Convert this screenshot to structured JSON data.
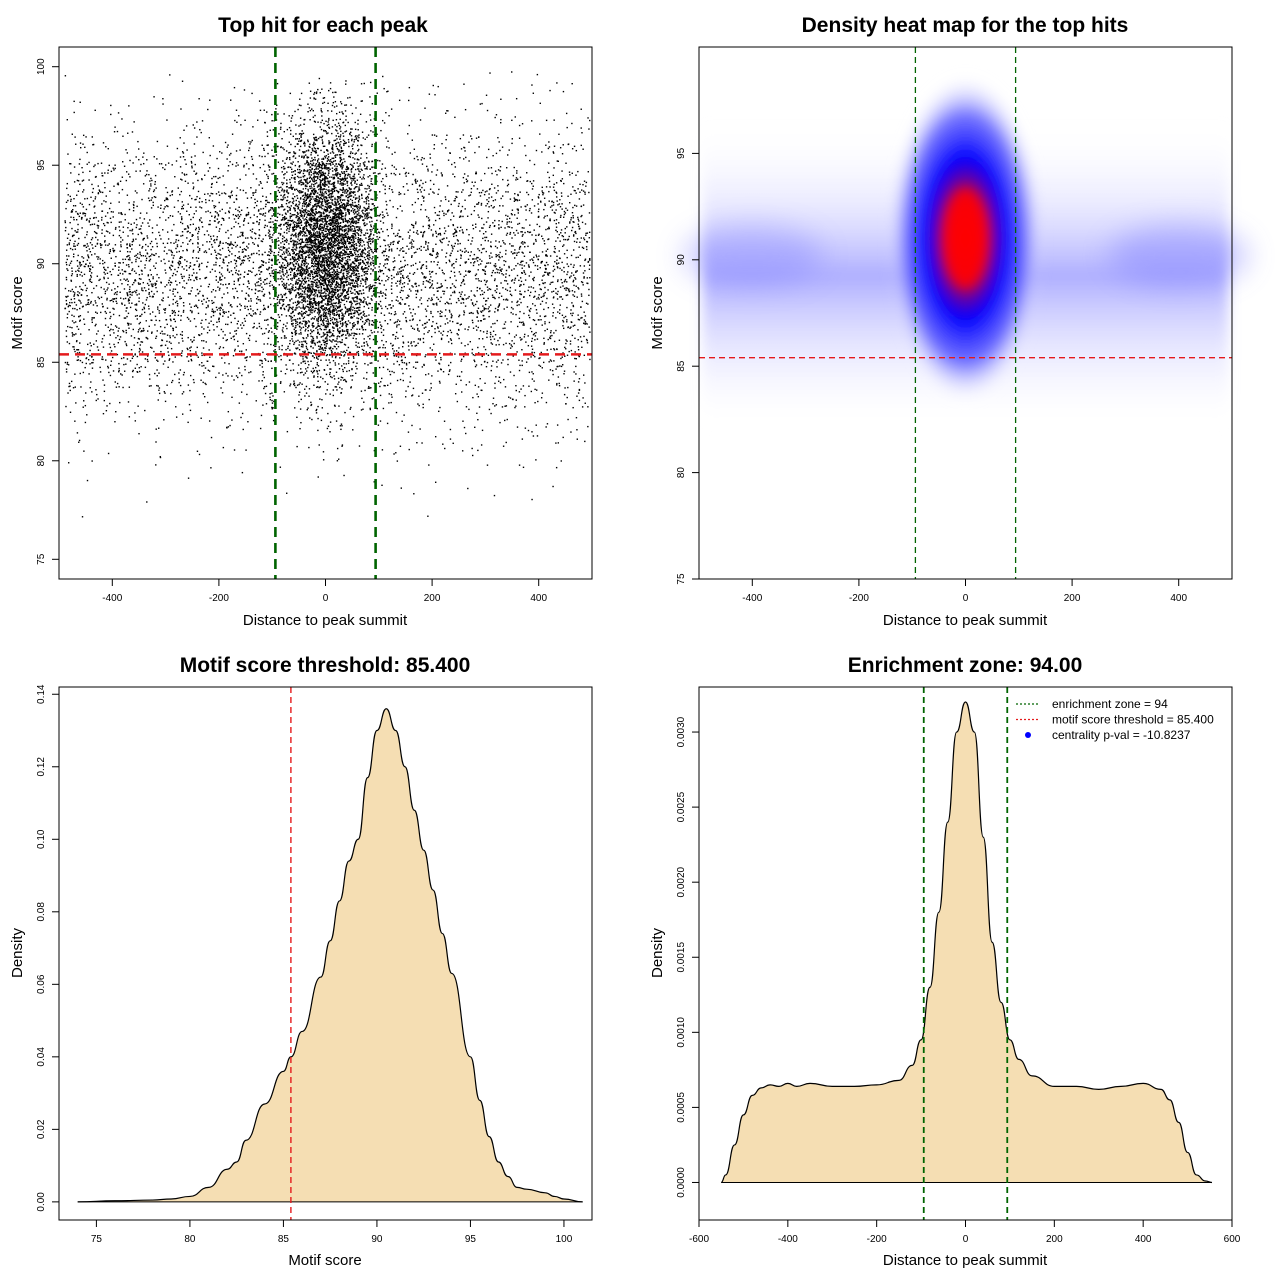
{
  "chart_data": [
    {
      "type": "scatter",
      "title": "Top hit for each peak",
      "xlabel": "Distance to peak summit",
      "ylabel": "Motif score",
      "xlim": [
        -500,
        500
      ],
      "ylim": [
        74,
        101
      ],
      "xticks": [
        -400,
        -200,
        0,
        200,
        400
      ],
      "yticks": [
        75,
        80,
        85,
        90,
        95,
        100
      ],
      "xtick_labels": [
        "-400",
        "-200",
        "0",
        "200",
        "400"
      ],
      "ytick_labels": [
        "75",
        "80",
        "85",
        "90",
        "95",
        "100"
      ],
      "background_points": {
        "x_range": [
          -490,
          495
        ],
        "y_mean": 89.5,
        "y_sd": 3.7
      },
      "central_points": {
        "x_mean": 0,
        "x_sd": 45,
        "y_mean": 91,
        "y_sd": 3
      },
      "reference_lines": {
        "vertical": [
          -94,
          94
        ],
        "horizontal": [
          85.4
        ],
        "vertical_color": "#006400",
        "horizontal_color": "#e41a1c"
      }
    },
    {
      "type": "heatmap",
      "title": "Density heat map for the top hits",
      "xlabel": "Distance to peak summit",
      "ylabel": "Motif score",
      "xlim": [
        -500,
        500
      ],
      "ylim": [
        75,
        100
      ],
      "xticks": [
        -400,
        -200,
        0,
        200,
        400
      ],
      "yticks": [
        75,
        80,
        85,
        90,
        95
      ],
      "xtick_labels": [
        "-400",
        "-200",
        "0",
        "200",
        "400"
      ],
      "ytick_labels": [
        "75",
        "80",
        "85",
        "90",
        "95"
      ],
      "hotspot": {
        "x": 0,
        "y": 91
      },
      "colors": {
        "low": "#ffffff",
        "mid": "#0000ff",
        "high": "#ff0000"
      },
      "reference_lines": {
        "vertical": [
          -94,
          94
        ],
        "horizontal": [
          85.4
        ],
        "vertical_color": "#006400",
        "horizontal_color": "#e41a1c"
      }
    },
    {
      "type": "area",
      "title": "Motif score threshold: 85.400",
      "xlabel": "Motif score",
      "ylabel": "Density",
      "xlim": [
        73,
        101.5
      ],
      "ylim": [
        -0.005,
        0.142
      ],
      "xticks": [
        75,
        80,
        85,
        90,
        95,
        100
      ],
      "yticks": [
        0,
        0.02,
        0.04,
        0.06,
        0.08,
        0.1,
        0.12,
        0.14
      ],
      "xtick_labels": [
        "75",
        "80",
        "85",
        "90",
        "95",
        "100"
      ],
      "ytick_labels": [
        "0.00",
        "0.02",
        "0.04",
        "0.06",
        "0.08",
        "0.10",
        "0.12",
        "0.14"
      ],
      "x": [
        74,
        76,
        78,
        79,
        80,
        81,
        82,
        82.5,
        83,
        84,
        85,
        85.4,
        86,
        87,
        87.5,
        88,
        88.5,
        89,
        89.5,
        90,
        90.5,
        91,
        91.5,
        92,
        92.5,
        93,
        93.5,
        94,
        95,
        95.5,
        96,
        96.5,
        97,
        97.5,
        98,
        99,
        99.5,
        100,
        101
      ],
      "y": [
        0,
        0.0003,
        0.0005,
        0.0008,
        0.0015,
        0.004,
        0.009,
        0.011,
        0.017,
        0.027,
        0.036,
        0.04,
        0.047,
        0.062,
        0.072,
        0.083,
        0.094,
        0.1,
        0.117,
        0.13,
        0.136,
        0.13,
        0.12,
        0.108,
        0.097,
        0.086,
        0.074,
        0.063,
        0.04,
        0.028,
        0.018,
        0.011,
        0.007,
        0.004,
        0.0035,
        0.0025,
        0.0015,
        0.0008,
        0
      ],
      "fill": "#f5deb3",
      "reference_lines": {
        "vertical": [
          85.4
        ],
        "vertical_color": "#e41a1c"
      }
    },
    {
      "type": "area",
      "title": "Enrichment zone: 94.00",
      "xlabel": "Distance to peak summit",
      "ylabel": "Density",
      "xlim": [
        -600,
        600
      ],
      "ylim": [
        -0.00025,
        0.0033
      ],
      "xticks": [
        -600,
        -400,
        -200,
        0,
        200,
        400,
        600
      ],
      "yticks": [
        0,
        0.0005,
        0.001,
        0.0015,
        0.002,
        0.0025,
        0.003
      ],
      "xtick_labels": [
        "-600",
        "-400",
        "-200",
        "0",
        "200",
        "400",
        "600"
      ],
      "ytick_labels": [
        "0.0000",
        "0.0005",
        "0.0010",
        "0.0015",
        "0.0020",
        "0.0025",
        "0.0030"
      ],
      "x": [
        -550,
        -540,
        -520,
        -500,
        -480,
        -460,
        -440,
        -420,
        -400,
        -380,
        -350,
        -300,
        -250,
        -200,
        -150,
        -120,
        -100,
        -80,
        -60,
        -40,
        -20,
        0,
        20,
        40,
        60,
        80,
        100,
        120,
        150,
        200,
        250,
        300,
        350,
        400,
        440,
        460,
        480,
        500,
        520,
        540,
        555
      ],
      "y": [
        0,
        5e-05,
        0.00025,
        0.00045,
        0.00058,
        0.00063,
        0.00065,
        0.00064,
        0.00066,
        0.00064,
        0.00066,
        0.00064,
        0.00064,
        0.00065,
        0.00068,
        0.00078,
        0.00095,
        0.0013,
        0.0018,
        0.0024,
        0.003,
        0.0032,
        0.003,
        0.0023,
        0.0016,
        0.0012,
        0.00095,
        0.00082,
        0.00071,
        0.00064,
        0.00064,
        0.00062,
        0.00064,
        0.00066,
        0.00062,
        0.00055,
        0.0004,
        0.0002,
        5e-05,
        1e-05,
        0
      ],
      "fill": "#f5deb3",
      "reference_lines": {
        "vertical": [
          -94,
          94
        ],
        "vertical_color": "#006400"
      },
      "legend": {
        "placement": "top-right",
        "entries": [
          {
            "label": "enrichment zone = 94",
            "color": "#006400",
            "style": "dotted-line"
          },
          {
            "label": "motif score threshold = 85.400",
            "color": "#e41a1c",
            "style": "dotted-line"
          },
          {
            "label": "centrality p-val = -10.8237",
            "color": "#0000ff",
            "style": "point"
          }
        ]
      }
    }
  ]
}
